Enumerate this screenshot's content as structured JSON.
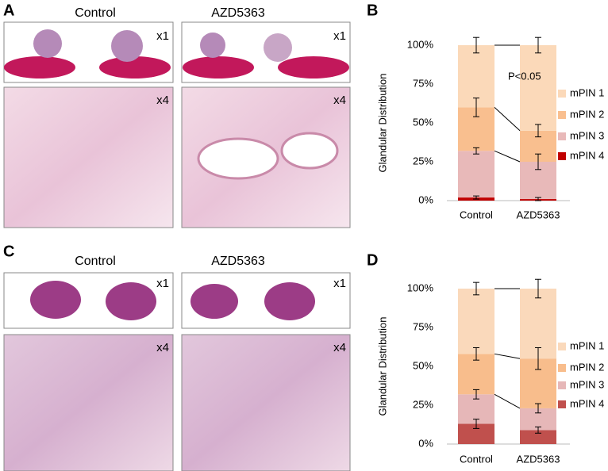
{
  "panels": [
    {
      "label": "A",
      "columns": [
        "Control",
        "AZD5363"
      ],
      "magnifications": [
        "x1",
        "x4"
      ]
    },
    {
      "label": "C",
      "columns": [
        "Control",
        "AZD5363"
      ],
      "magnifications": [
        "x1",
        "x4"
      ]
    }
  ],
  "chart_data": [
    {
      "type": "stacked-bar",
      "panel_label": "B",
      "ylabel": "Glandular Distribution",
      "categories": [
        "Control",
        "AZD5363"
      ],
      "series": [
        {
          "name": "mPIN 1",
          "color": "#fbd9b9",
          "values": [
            40,
            55
          ],
          "errors": [
            5,
            5
          ]
        },
        {
          "name": "mPIN 2",
          "color": "#f9bf8f",
          "values": [
            28,
            20
          ],
          "errors": [
            6,
            4
          ]
        },
        {
          "name": "mPIN 3",
          "color": "#e8b9b9",
          "values": [
            30,
            24
          ],
          "errors": [
            2,
            5
          ]
        },
        {
          "name": "mPIN 4",
          "color": "#c00000",
          "values": [
            2,
            1
          ],
          "errors": [
            1,
            1
          ]
        }
      ],
      "annotation": "P<0.05",
      "ylim": [
        0,
        100
      ],
      "yticks": [
        {
          "value": 0,
          "label": "0%"
        },
        {
          "value": 25,
          "label": "25%"
        },
        {
          "value": 50,
          "label": "50%"
        },
        {
          "value": 75,
          "label": "75%"
        },
        {
          "value": 100,
          "label": "100%"
        }
      ]
    },
    {
      "type": "stacked-bar",
      "panel_label": "D",
      "ylabel": "Glandular Distribution",
      "categories": [
        "Control",
        "AZD5363"
      ],
      "series": [
        {
          "name": "mPIN 1",
          "color": "#fad9bb",
          "values": [
            42,
            45
          ],
          "errors": [
            4,
            6
          ]
        },
        {
          "name": "mPIN 2",
          "color": "#f8bd8c",
          "values": [
            26,
            32
          ],
          "errors": [
            4,
            7
          ]
        },
        {
          "name": "mPIN 3",
          "color": "#e6b7b8",
          "values": [
            19,
            14
          ],
          "errors": [
            3,
            3
          ]
        },
        {
          "name": "mPIN 4",
          "color": "#c0504d",
          "values": [
            13,
            9
          ],
          "errors": [
            3,
            2
          ]
        }
      ],
      "ylim": [
        0,
        100
      ],
      "yticks": [
        {
          "value": 0,
          "label": "0%"
        },
        {
          "value": 25,
          "label": "25%"
        },
        {
          "value": 50,
          "label": "50%"
        },
        {
          "value": 75,
          "label": "75%"
        },
        {
          "value": 100,
          "label": "100%"
        }
      ]
    }
  ]
}
